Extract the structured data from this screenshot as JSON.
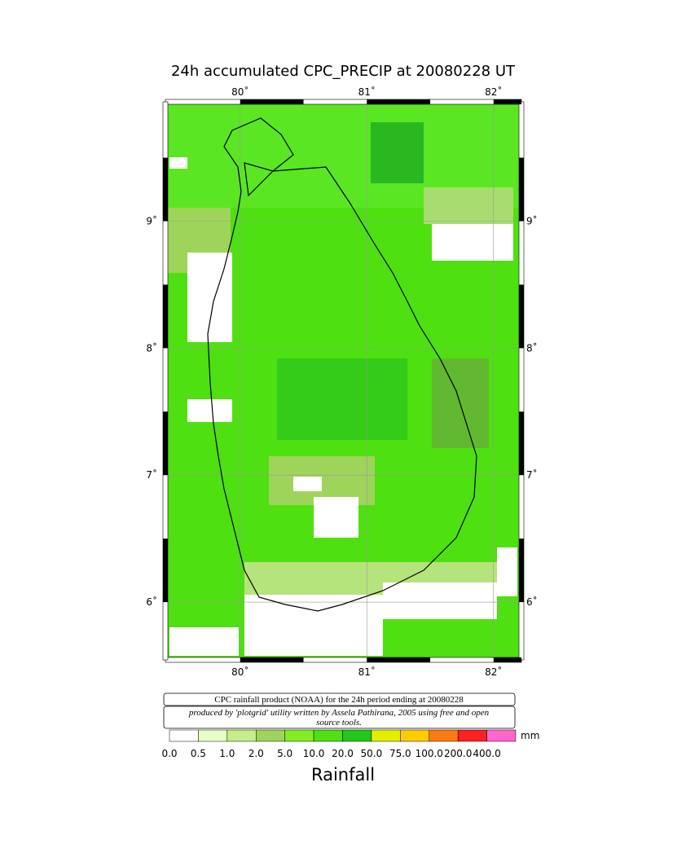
{
  "title": "24h accumulated CPC_PRECIP  at 20080228 UT",
  "map": {
    "xlim": [
      79.41,
      82.22
    ],
    "ylim": [
      5.545,
      9.94
    ],
    "lon_ticks": [
      {
        "value": 80,
        "label": "80˚"
      },
      {
        "value": 81,
        "label": "81˚"
      },
      {
        "value": 82,
        "label": "82˚"
      }
    ],
    "lat_ticks": [
      {
        "value": 9,
        "label": "9˚"
      },
      {
        "value": 8,
        "label": "8˚"
      },
      {
        "value": 7,
        "label": "7˚"
      },
      {
        "value": 6,
        "label": "6˚"
      }
    ]
  },
  "notes": [
    "CPC rainfall product (NOAA) for the 24h period ending at 20080228",
    "produced by 'plotgrid' utility written by Assela Pathirana, 2005 using free and open",
    "source tools."
  ],
  "colorbar": {
    "labels": [
      "0.0",
      "0.5",
      "1.0",
      "2.0",
      "5.0",
      "10.0",
      "20.0",
      "50.0",
      "75.0",
      "100.0",
      "200.0",
      "400.0"
    ],
    "colors": [
      "#ffffff",
      "#e6ffc4",
      "#c4ee88",
      "#9ed45a",
      "#82ee20",
      "#4ee010",
      "#22c818",
      "#e4ee00",
      "#ffcc00",
      "#ff7a10",
      "#ff2020",
      "#ff66cc"
    ],
    "unit": "mm",
    "title": "Rainfall"
  }
}
